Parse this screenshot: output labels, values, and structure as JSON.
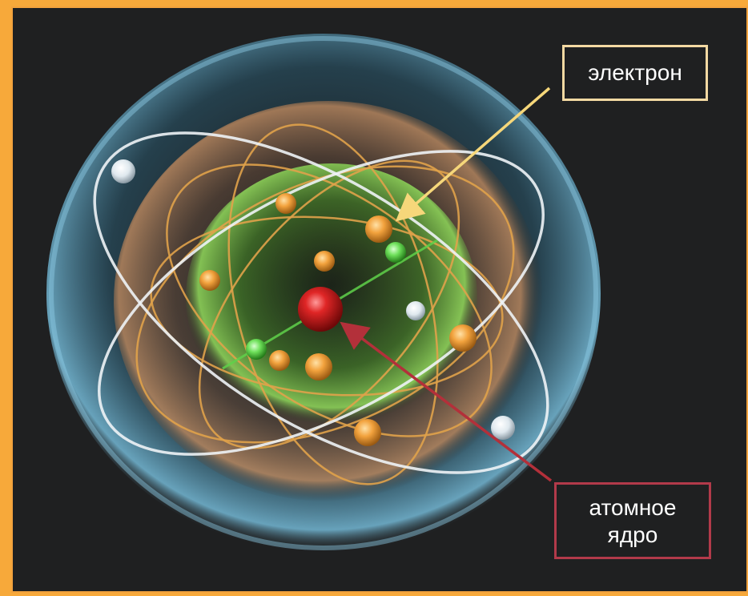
{
  "labels": {
    "electron": "электрон",
    "nucleus": "атомное\nядро"
  },
  "colors": {
    "frame": "#f7a93a",
    "background": "#1f2021",
    "outer_shell": "#4fa6c8",
    "middle_shell": "#b7784a",
    "inner_shell": "#6fbf3c",
    "nucleus": "#d11f1f",
    "orange_electron": "#f2a23d",
    "green_electron": "#6ee05a",
    "white_electron": "#e8eef2",
    "electron_arrow": "#f6d77a",
    "nucleus_arrow": "#b3303a",
    "electron_label_border": "#f3d9a2",
    "nucleus_label_border": "#b23a4a"
  },
  "icons": {
    "nucleus": "red-sphere",
    "electron": "small-sphere"
  }
}
